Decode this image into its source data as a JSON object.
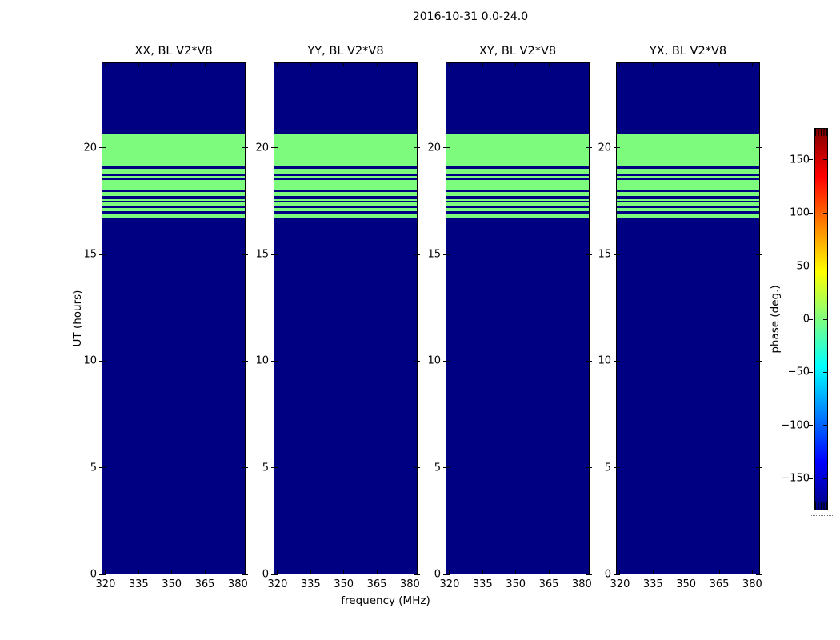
{
  "figure": {
    "suptitle": "2016-10-31 0.0-24.0",
    "xlabel": "frequency (MHz)",
    "ylabel": "UT (hours)",
    "background_color": "#ffffff"
  },
  "chart_data": {
    "type": "heatmap",
    "suptitle": "2016-10-31 0.0-24.0",
    "panels": [
      {
        "title": "XX, BL V2*V8"
      },
      {
        "title": "YY, BL V2*V8"
      },
      {
        "title": "XY, BL V2*V8"
      },
      {
        "title": "YX, BL V2*V8"
      }
    ],
    "x_axis": {
      "label": "frequency (MHz)",
      "ticks": [
        320,
        335,
        350,
        365,
        380
      ],
      "range": [
        318.2,
        383.5
      ],
      "unit": "MHz"
    },
    "y_axis": {
      "label": "UT (hours)",
      "ticks": [
        0,
        5,
        10,
        15,
        20
      ],
      "range": [
        0,
        24
      ],
      "unit": "hours"
    },
    "colorbar": {
      "label": "phase (deg.)",
      "ticks": [
        -150,
        -100,
        -50,
        0,
        50,
        100,
        150
      ],
      "range": [
        -180,
        180
      ],
      "colormap": "jet"
    },
    "values": {
      "background_phase_deg": -180,
      "band_phase_deg": 0,
      "green_band_hours": [
        16.71,
        20.68
      ],
      "dark_stripes_hours": [
        [
          19.0,
          19.13
        ],
        [
          18.68,
          18.77
        ],
        [
          18.49,
          18.58
        ],
        [
          17.91,
          18.04
        ],
        [
          17.59,
          17.72
        ],
        [
          17.42,
          17.51
        ],
        [
          17.19,
          17.29
        ],
        [
          16.93,
          17.03
        ]
      ],
      "note_same_pattern_all_panels": true
    },
    "colors": {
      "value_background": "#000082",
      "band": "#7dfb7d",
      "panel_border": "#000000",
      "jet_stops": [
        "#000080",
        "#0000ff",
        "#00ffff",
        "#ffff00",
        "#ff0000",
        "#800000"
      ]
    },
    "grid": false,
    "legend": false
  }
}
